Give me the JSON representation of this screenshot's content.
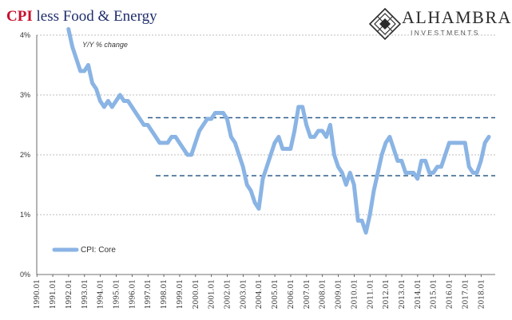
{
  "header": {
    "title_accent": "CPI",
    "title_rest": " less Food & Energy",
    "logo_name": "ALHAMBRA",
    "logo_sub": "INVESTMENTS"
  },
  "chart_data": {
    "type": "line",
    "title": "CPI less Food & Energy",
    "annotation": "Y/Y % change",
    "xlabel": "",
    "ylabel": "",
    "ylim": [
      0,
      4
    ],
    "yticks": [
      "0%",
      "1%",
      "2%",
      "3%",
      "4%"
    ],
    "xticks": [
      "1990.01",
      "1991.01",
      "1992.01",
      "1993.01",
      "1994.01",
      "1995.01",
      "1996.01",
      "1997.01",
      "1998.01",
      "1999.01",
      "2000.01",
      "2001.01",
      "2002.01",
      "2003.01",
      "2004.01",
      "2005.01",
      "2006.01",
      "2007.01",
      "2008.01",
      "2009.01",
      "2010.01",
      "2011.01",
      "2012.01",
      "2013.01",
      "2014.01",
      "2015.01",
      "2016.01",
      "2017.01",
      "2018.01"
    ],
    "grid": true,
    "legend": "bottom-left",
    "series": [
      {
        "name": "CPI: Core",
        "color": "#8ab4e4",
        "x": [
          1992.0,
          1992.25,
          1992.5,
          1992.75,
          1993.0,
          1993.25,
          1993.5,
          1993.75,
          1994.0,
          1994.25,
          1994.5,
          1994.75,
          1995.0,
          1995.25,
          1995.5,
          1995.75,
          1996.0,
          1996.25,
          1996.5,
          1996.75,
          1997.0,
          1997.25,
          1997.5,
          1997.75,
          1998.0,
          1998.25,
          1998.5,
          1998.75,
          1999.0,
          1999.25,
          1999.5,
          1999.75,
          2000.0,
          2000.25,
          2000.5,
          2000.75,
          2001.0,
          2001.25,
          2001.5,
          2001.75,
          2002.0,
          2002.25,
          2002.5,
          2002.75,
          2003.0,
          2003.25,
          2003.5,
          2003.75,
          2004.0,
          2004.25,
          2004.5,
          2004.75,
          2005.0,
          2005.25,
          2005.5,
          2005.75,
          2006.0,
          2006.25,
          2006.5,
          2006.75,
          2007.0,
          2007.25,
          2007.5,
          2007.75,
          2008.0,
          2008.25,
          2008.5,
          2008.75,
          2009.0,
          2009.25,
          2009.5,
          2009.75,
          2010.0,
          2010.25,
          2010.5,
          2010.75,
          2011.0,
          2011.25,
          2011.5,
          2011.75,
          2012.0,
          2012.25,
          2012.5,
          2012.75,
          2013.0,
          2013.25,
          2013.5,
          2013.75,
          2014.0,
          2014.25,
          2014.5,
          2014.75,
          2015.0,
          2015.25,
          2015.5,
          2015.75,
          2016.0,
          2016.25,
          2016.5,
          2016.75,
          2017.0,
          2017.25,
          2017.5,
          2017.75,
          2018.0,
          2018.25,
          2018.5
        ],
        "values": [
          4.1,
          3.8,
          3.6,
          3.4,
          3.4,
          3.5,
          3.2,
          3.1,
          2.9,
          2.8,
          2.9,
          2.8,
          2.9,
          3.0,
          2.9,
          2.9,
          2.8,
          2.7,
          2.6,
          2.5,
          2.5,
          2.4,
          2.3,
          2.2,
          2.2,
          2.2,
          2.3,
          2.3,
          2.2,
          2.1,
          2.0,
          2.0,
          2.2,
          2.4,
          2.5,
          2.6,
          2.6,
          2.7,
          2.7,
          2.7,
          2.6,
          2.3,
          2.2,
          2.0,
          1.8,
          1.5,
          1.4,
          1.2,
          1.1,
          1.6,
          1.8,
          2.0,
          2.2,
          2.3,
          2.1,
          2.1,
          2.1,
          2.4,
          2.8,
          2.8,
          2.5,
          2.3,
          2.3,
          2.4,
          2.4,
          2.3,
          2.5,
          2.0,
          1.8,
          1.7,
          1.5,
          1.7,
          1.5,
          0.9,
          0.9,
          0.7,
          1.0,
          1.4,
          1.7,
          2.0,
          2.2,
          2.3,
          2.1,
          1.9,
          1.9,
          1.7,
          1.7,
          1.7,
          1.6,
          1.9,
          1.9,
          1.7,
          1.7,
          1.8,
          1.8,
          2.0,
          2.2,
          2.2,
          2.2,
          2.2,
          2.2,
          1.8,
          1.7,
          1.7,
          1.9,
          2.2,
          2.3
        ]
      }
    ],
    "reference_lines": [
      {
        "value": 2.62,
        "from": 1997.0,
        "style": "dashed",
        "color": "#2e5c8a"
      },
      {
        "value": 1.65,
        "from": 1997.5,
        "style": "dashed",
        "color": "#2e5c8a"
      }
    ]
  }
}
